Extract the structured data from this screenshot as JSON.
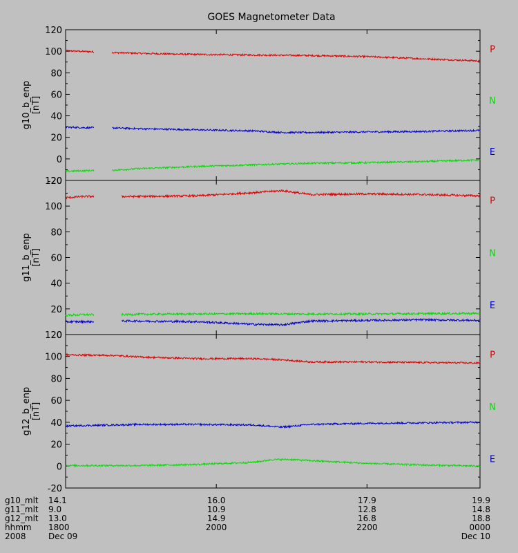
{
  "title": "GOES Magnetometer Data",
  "colors": {
    "background": "#c0c0c0",
    "axis": "#000000",
    "P": "#dd0000",
    "N": "#00dd00",
    "E": "#0000cc"
  },
  "chart_data": [
    {
      "type": "line",
      "ylabel": "g10_b_enp",
      "yunit": "[nT]",
      "ylim": [
        -20,
        120
      ],
      "yticks": [
        -20,
        0,
        20,
        40,
        60,
        80,
        100,
        120
      ],
      "legend": [
        "P",
        "N",
        "E"
      ],
      "gap": [
        1710,
        1730
      ],
      "series": [
        {
          "name": "P",
          "color": "#dd0000",
          "x": [
            1640,
            1700,
            1730,
            1800,
            1900,
            2000,
            2100,
            2200,
            2300,
            2400
          ],
          "y": [
            100.5,
            99.8,
            98.8,
            98.0,
            97.0,
            96.5,
            96.0,
            95.0,
            93.0,
            91.0
          ]
        },
        {
          "name": "E",
          "color": "#0000cc",
          "x": [
            1640,
            1700,
            1730,
            1800,
            1900,
            2000,
            2030,
            2100,
            2200,
            2300,
            2400
          ],
          "y": [
            29.5,
            29.0,
            28.8,
            28.0,
            27.0,
            26.0,
            24.5,
            24.5,
            25.0,
            25.5,
            26.5
          ]
        },
        {
          "name": "N",
          "color": "#00dd00",
          "x": [
            1640,
            1700,
            1730,
            1800,
            1900,
            2000,
            2100,
            2200,
            2300,
            2400
          ],
          "y": [
            -11.5,
            -11.0,
            -10.5,
            -9.0,
            -7.0,
            -5.5,
            -4.0,
            -3.5,
            -2.5,
            -1.0
          ]
        }
      ]
    },
    {
      "type": "line",
      "ylabel": "g11_b_enp",
      "yunit": "[nT]",
      "ylim": [
        0,
        120
      ],
      "yticks": [
        0,
        20,
        40,
        60,
        80,
        100,
        120
      ],
      "legend": [
        "P",
        "N",
        "E"
      ],
      "gap": [
        1710,
        1740
      ],
      "series": [
        {
          "name": "P",
          "color": "#dd0000",
          "x": [
            1640,
            1700,
            1740,
            1800,
            1900,
            2000,
            2030,
            2100,
            2200,
            2300,
            2400
          ],
          "y": [
            106.5,
            107.5,
            107.5,
            107.5,
            108.0,
            110.5,
            112.0,
            109.0,
            109.5,
            109.0,
            108.0
          ]
        },
        {
          "name": "N",
          "color": "#00dd00",
          "x": [
            1640,
            1700,
            1740,
            1800,
            1900,
            2000,
            2100,
            2200,
            2300,
            2400
          ],
          "y": [
            15.0,
            15.5,
            15.5,
            15.8,
            16.0,
            16.2,
            16.0,
            16.0,
            16.3,
            16.5
          ]
        },
        {
          "name": "E",
          "color": "#0000cc",
          "x": [
            1640,
            1700,
            1740,
            1800,
            1900,
            1930,
            2000,
            2030,
            2100,
            2200,
            2300,
            2400
          ],
          "y": [
            10.0,
            10.0,
            10.5,
            10.5,
            10.0,
            9.0,
            8.0,
            7.5,
            10.5,
            11.0,
            11.5,
            11.0
          ]
        }
      ]
    },
    {
      "type": "line",
      "ylabel": "g12_b_enp",
      "yunit": "[nT]",
      "ylim": [
        -20,
        120
      ],
      "yticks": [
        -20,
        0,
        20,
        40,
        60,
        80,
        100,
        120
      ],
      "legend": [
        "P",
        "N",
        "E"
      ],
      "gap": null,
      "series": [
        {
          "name": "P",
          "color": "#dd0000",
          "x": [
            1640,
            1730,
            1800,
            1900,
            2000,
            2030,
            2100,
            2200,
            2300,
            2400
          ],
          "y": [
            101.5,
            101.0,
            99.5,
            98.0,
            98.0,
            97.0,
            95.0,
            95.0,
            94.5,
            94.0
          ]
        },
        {
          "name": "E",
          "color": "#0000cc",
          "x": [
            1640,
            1700,
            1800,
            1900,
            2000,
            2030,
            2100,
            2200,
            2300,
            2400
          ],
          "y": [
            36.5,
            37.0,
            38.0,
            38.0,
            37.5,
            35.5,
            38.0,
            39.0,
            39.5,
            40.0
          ]
        },
        {
          "name": "N",
          "color": "#00dd00",
          "x": [
            1640,
            1730,
            1800,
            1900,
            2000,
            2020,
            2040,
            2100,
            2200,
            2300,
            2400
          ],
          "y": [
            0.5,
            0.5,
            0.5,
            1.5,
            3.5,
            6.0,
            6.0,
            5.0,
            2.5,
            1.0,
            0.0
          ]
        }
      ]
    }
  ],
  "time_axis": {
    "range": [
      1640,
      2400
    ],
    "labels": [
      {
        "t": 1640,
        "rows": [
          "14.1",
          "9.0",
          "13.0",
          "1800",
          "Dec 09"
        ]
      },
      {
        "t": 1920,
        "rows": [
          "16.0",
          "10.9",
          "14.9",
          "2000",
          ""
        ]
      },
      {
        "t": 2160,
        "rows": [
          "17.9",
          "12.8",
          "16.8",
          "2200",
          ""
        ]
      },
      {
        "t": 2400,
        "rows": [
          "19.9",
          "14.8",
          "18.8",
          "0000",
          "Dec 10"
        ]
      }
    ],
    "row_names": [
      "g10_mlt",
      "g11_mlt",
      "g12_mlt",
      "hhmm",
      "2008"
    ]
  }
}
